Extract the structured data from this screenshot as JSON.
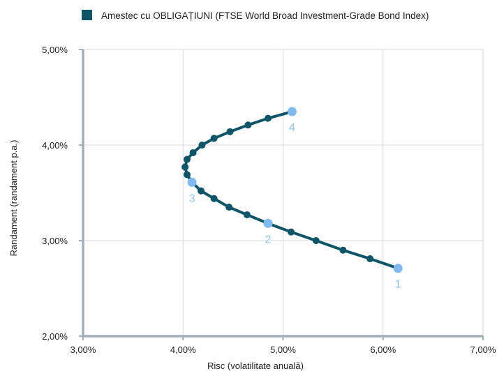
{
  "legend": {
    "label": "Amestec cu OBLIGAȚIUNI (FTSE World Broad Investment-Grade Bond Index)",
    "placement": "top-left"
  },
  "colors": {
    "series": "#0d5567",
    "highlight": "#7fbbf0",
    "highlight_label": "#8fc3f0",
    "axis": "#a3aebb",
    "grid": "#d9d9d9"
  },
  "chart_data": {
    "type": "line",
    "title": "",
    "xlabel": "Risc (volatilitate anuală)",
    "ylabel": "Randament (randament p.a.)",
    "xlim": [
      3.0,
      7.0
    ],
    "ylim": [
      2.0,
      5.0
    ],
    "grid": true,
    "x_ticks": [
      3.0,
      4.0,
      5.0,
      6.0,
      7.0
    ],
    "x_tick_labels": [
      "3,00%",
      "4,00%",
      "5,00%",
      "6,00%",
      "7,00%"
    ],
    "y_ticks": [
      2.0,
      3.0,
      4.0,
      5.0
    ],
    "y_tick_labels": [
      "2,00%",
      "3,00%",
      "4,00%",
      "5,00%"
    ],
    "series": [
      {
        "name": "Amestec cu OBLIGAȚIUNI (FTSE World Broad Investment-Grade Bond Index)",
        "points": [
          {
            "x": 6.15,
            "y": 2.71,
            "label": "1"
          },
          {
            "x": 5.87,
            "y": 2.81
          },
          {
            "x": 5.6,
            "y": 2.9
          },
          {
            "x": 5.33,
            "y": 3.0
          },
          {
            "x": 5.08,
            "y": 3.09
          },
          {
            "x": 4.85,
            "y": 3.18,
            "label": "2"
          },
          {
            "x": 4.64,
            "y": 3.27
          },
          {
            "x": 4.46,
            "y": 3.35
          },
          {
            "x": 4.31,
            "y": 3.44
          },
          {
            "x": 4.18,
            "y": 3.52
          },
          {
            "x": 4.09,
            "y": 3.61,
            "label": "3"
          },
          {
            "x": 4.04,
            "y": 3.69
          },
          {
            "x": 4.02,
            "y": 3.77
          },
          {
            "x": 4.04,
            "y": 3.85
          },
          {
            "x": 4.1,
            "y": 3.92
          },
          {
            "x": 4.19,
            "y": 4.0
          },
          {
            "x": 4.31,
            "y": 4.07
          },
          {
            "x": 4.47,
            "y": 4.14
          },
          {
            "x": 4.65,
            "y": 4.21
          },
          {
            "x": 4.85,
            "y": 4.28
          },
          {
            "x": 5.09,
            "y": 4.35,
            "label": "4"
          }
        ]
      }
    ]
  }
}
